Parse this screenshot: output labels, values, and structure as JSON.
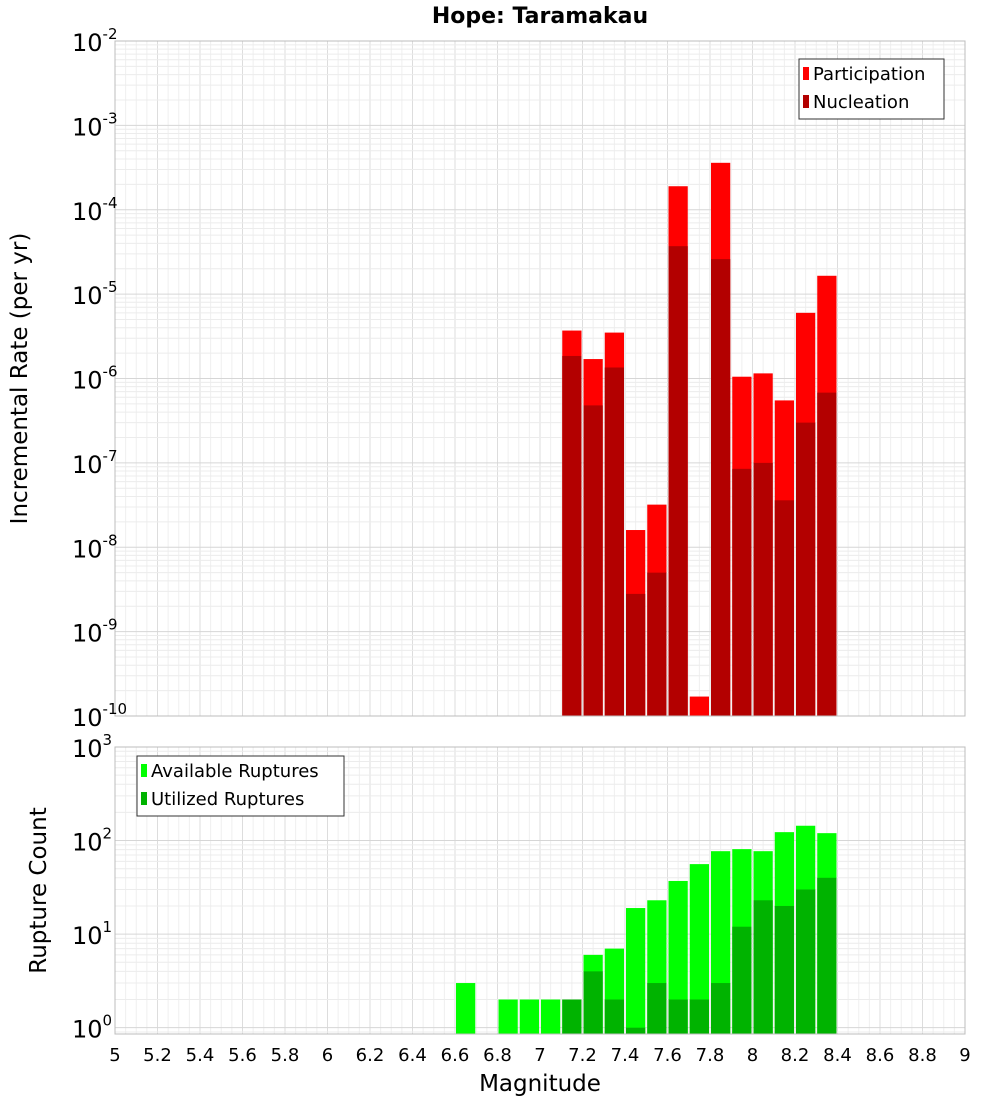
{
  "chart_data": [
    {
      "type": "bar",
      "title": "Hope: Taramakau",
      "xlabel": "",
      "ylabel": "Incremental Rate (per yr)",
      "yscale": "log",
      "xlim": [
        5,
        9
      ],
      "ylim_exp": [
        -10,
        -2
      ],
      "ytick_labels": [
        {
          "base": "10",
          "exp": "-2"
        },
        {
          "base": "10",
          "exp": "-3"
        },
        {
          "base": "10",
          "exp": "-4"
        },
        {
          "base": "10",
          "exp": "-5"
        },
        {
          "base": "10",
          "exp": "-6"
        },
        {
          "base": "10",
          "exp": "-7"
        },
        {
          "base": "10",
          "exp": "-8"
        },
        {
          "base": "10",
          "exp": "-9"
        },
        {
          "base": "10",
          "exp": "-10"
        }
      ],
      "grid": true,
      "legend_position": "top-right",
      "bar_width": 0.1,
      "series": [
        {
          "name": "Participation",
          "color": "#ff0000",
          "x": [
            7.15,
            7.25,
            7.35,
            7.45,
            7.55,
            7.65,
            7.75,
            7.85,
            7.95,
            8.05,
            8.15,
            8.25,
            8.35
          ],
          "values": [
            3.7e-06,
            1.7e-06,
            3.5e-06,
            1.6e-08,
            3.2e-08,
            0.00019,
            1.7e-10,
            0.00036,
            1.05e-06,
            1.15e-06,
            5.5e-07,
            6e-06,
            1.65e-05
          ]
        },
        {
          "name": "Nucleation",
          "color": "#b30000",
          "x": [
            7.15,
            7.25,
            7.35,
            7.45,
            7.55,
            7.65,
            7.75,
            7.85,
            7.95,
            8.05,
            8.15,
            8.25,
            8.35
          ],
          "values": [
            1.85e-06,
            4.8e-07,
            1.35e-06,
            2.8e-09,
            5e-09,
            3.7e-05,
            1e-10,
            2.6e-05,
            8.5e-08,
            1e-07,
            3.6e-08,
            3e-07,
            6.8e-07
          ]
        }
      ]
    },
    {
      "type": "bar",
      "title": "",
      "xlabel": "Magnitude",
      "ylabel": "Rupture Count",
      "yscale": "log",
      "xlim": [
        5,
        9
      ],
      "ylim_exp": [
        -0.0675,
        3
      ],
      "ytick_labels": [
        {
          "base": "10",
          "exp": "3"
        },
        {
          "base": "10",
          "exp": "2"
        },
        {
          "base": "10",
          "exp": "1"
        },
        {
          "base": "10",
          "exp": "0"
        }
      ],
      "xtick_labels": [
        "5",
        "5.2",
        "5.4",
        "5.6",
        "5.8",
        "6",
        "6.2",
        "6.4",
        "6.6",
        "6.8",
        "7",
        "7.2",
        "7.4",
        "7.6",
        "7.8",
        "8",
        "8.2",
        "8.4",
        "8.6",
        "8.8",
        "9"
      ],
      "grid": true,
      "legend_position": "top-left",
      "bar_width": 0.1,
      "series": [
        {
          "name": "Available Ruptures",
          "color": "#00ff00",
          "x": [
            6.65,
            6.85,
            6.95,
            7.05,
            7.15,
            7.25,
            7.35,
            7.45,
            7.55,
            7.65,
            7.75,
            7.85,
            7.95,
            8.05,
            8.15,
            8.25,
            8.35
          ],
          "values": [
            3,
            2,
            2,
            2,
            2,
            6,
            7,
            19,
            23,
            37,
            56,
            77,
            81,
            77,
            123,
            144,
            120
          ]
        },
        {
          "name": "Utilized Ruptures",
          "color": "#00b300",
          "x": [
            7.15,
            7.25,
            7.35,
            7.45,
            7.55,
            7.65,
            7.75,
            7.85,
            7.95,
            8.05,
            8.15,
            8.25,
            8.35
          ],
          "values": [
            2,
            4,
            2,
            1,
            3,
            2,
            2,
            3,
            12,
            23,
            20,
            30,
            40
          ]
        }
      ]
    }
  ]
}
